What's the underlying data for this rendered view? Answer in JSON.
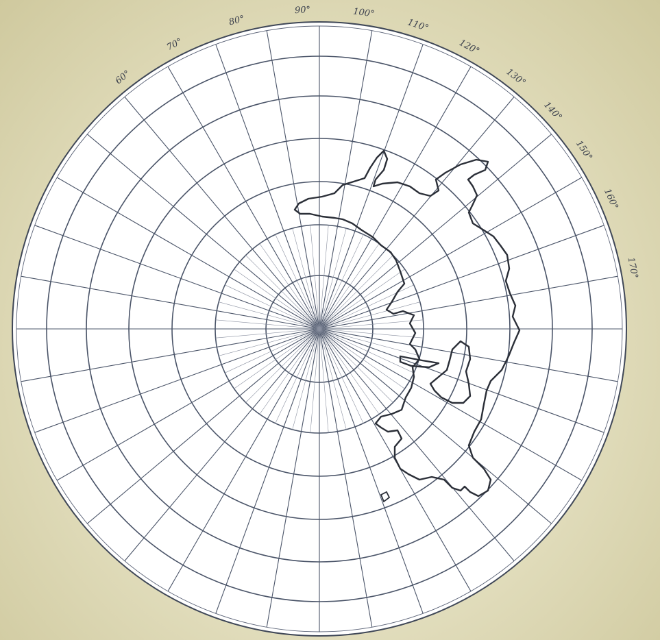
{
  "map": {
    "projection": "polar-azimuthal",
    "parallels_count": 6,
    "meridian_step_degrees": 10,
    "colors": {
      "background": "#e6e2c4",
      "grid": "#4a5468",
      "coastline": "#2b2f38"
    }
  },
  "longitude_labels": [
    {
      "text": "60°",
      "angle": -38
    },
    {
      "text": "70°",
      "angle": -27
    },
    {
      "text": "80°",
      "angle": -15
    },
    {
      "text": "90°",
      "angle": -3
    },
    {
      "text": "100°",
      "angle": 8
    },
    {
      "text": "110°",
      "angle": 18
    },
    {
      "text": "120°",
      "angle": 28
    },
    {
      "text": "130°",
      "angle": 38
    },
    {
      "text": "140°",
      "angle": 47
    },
    {
      "text": "150°",
      "angle": 56
    },
    {
      "text": "160°",
      "angle": 66
    },
    {
      "text": "170°",
      "angle": 79
    }
  ]
}
